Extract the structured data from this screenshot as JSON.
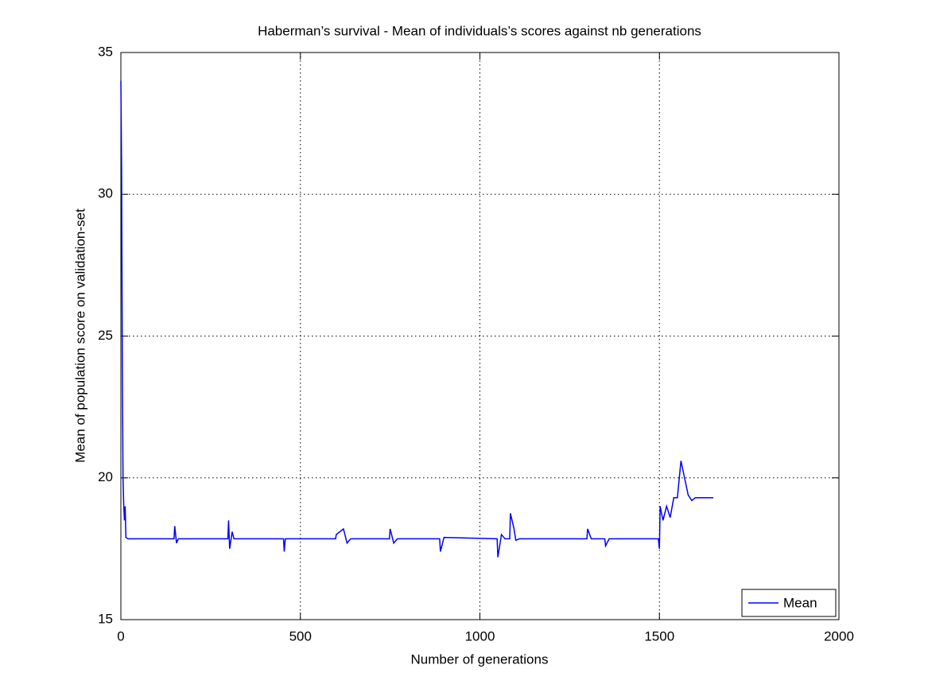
{
  "chart_data": {
    "type": "line",
    "title": "Haberman’s survival - Mean of individuals’s scores against nb generations",
    "x_label": "Number of generations",
    "y_label": "Mean of population score on validation-set",
    "x": [
      0,
      2,
      4,
      6,
      8,
      10,
      12,
      14,
      20,
      148,
      150,
      155,
      160,
      298,
      300,
      303,
      310,
      315,
      453,
      455,
      458,
      598,
      600,
      620,
      630,
      640,
      748,
      750,
      760,
      770,
      888,
      890,
      900,
      1048,
      1050,
      1060,
      1070,
      1083,
      1085,
      1095,
      1100,
      1110,
      1298,
      1300,
      1310,
      1348,
      1350,
      1360,
      1497,
      1500,
      1502,
      1510,
      1520,
      1530,
      1540,
      1550,
      1560,
      1570,
      1580,
      1590,
      1600,
      1650
    ],
    "series": [
      {
        "name": "Mean",
        "color": "#0000ff",
        "values": [
          34,
          31,
          24,
          20,
          19,
          18.5,
          19,
          17.9,
          17.85,
          17.85,
          18.3,
          17.7,
          17.85,
          17.85,
          18.5,
          17.5,
          18.1,
          17.85,
          17.85,
          17.4,
          17.85,
          17.85,
          18.0,
          18.2,
          17.7,
          17.85,
          17.85,
          18.2,
          17.7,
          17.85,
          17.85,
          17.4,
          17.9,
          17.85,
          17.2,
          18.0,
          17.85,
          17.85,
          18.75,
          18.2,
          17.8,
          17.85,
          17.85,
          18.2,
          17.85,
          17.85,
          17.6,
          17.85,
          17.85,
          17.5,
          19.0,
          18.5,
          19.0,
          18.6,
          19.3,
          19.3,
          20.6,
          20.0,
          19.4,
          19.2,
          19.3,
          19.3
        ]
      }
    ],
    "xlim": [
      0,
      2000
    ],
    "xticks": [
      0,
      500,
      1000,
      1500,
      2000
    ],
    "ylim": [
      15,
      35
    ],
    "yticks": [
      15,
      20,
      25,
      30,
      35
    ],
    "grid": true,
    "legend": "lower right"
  }
}
